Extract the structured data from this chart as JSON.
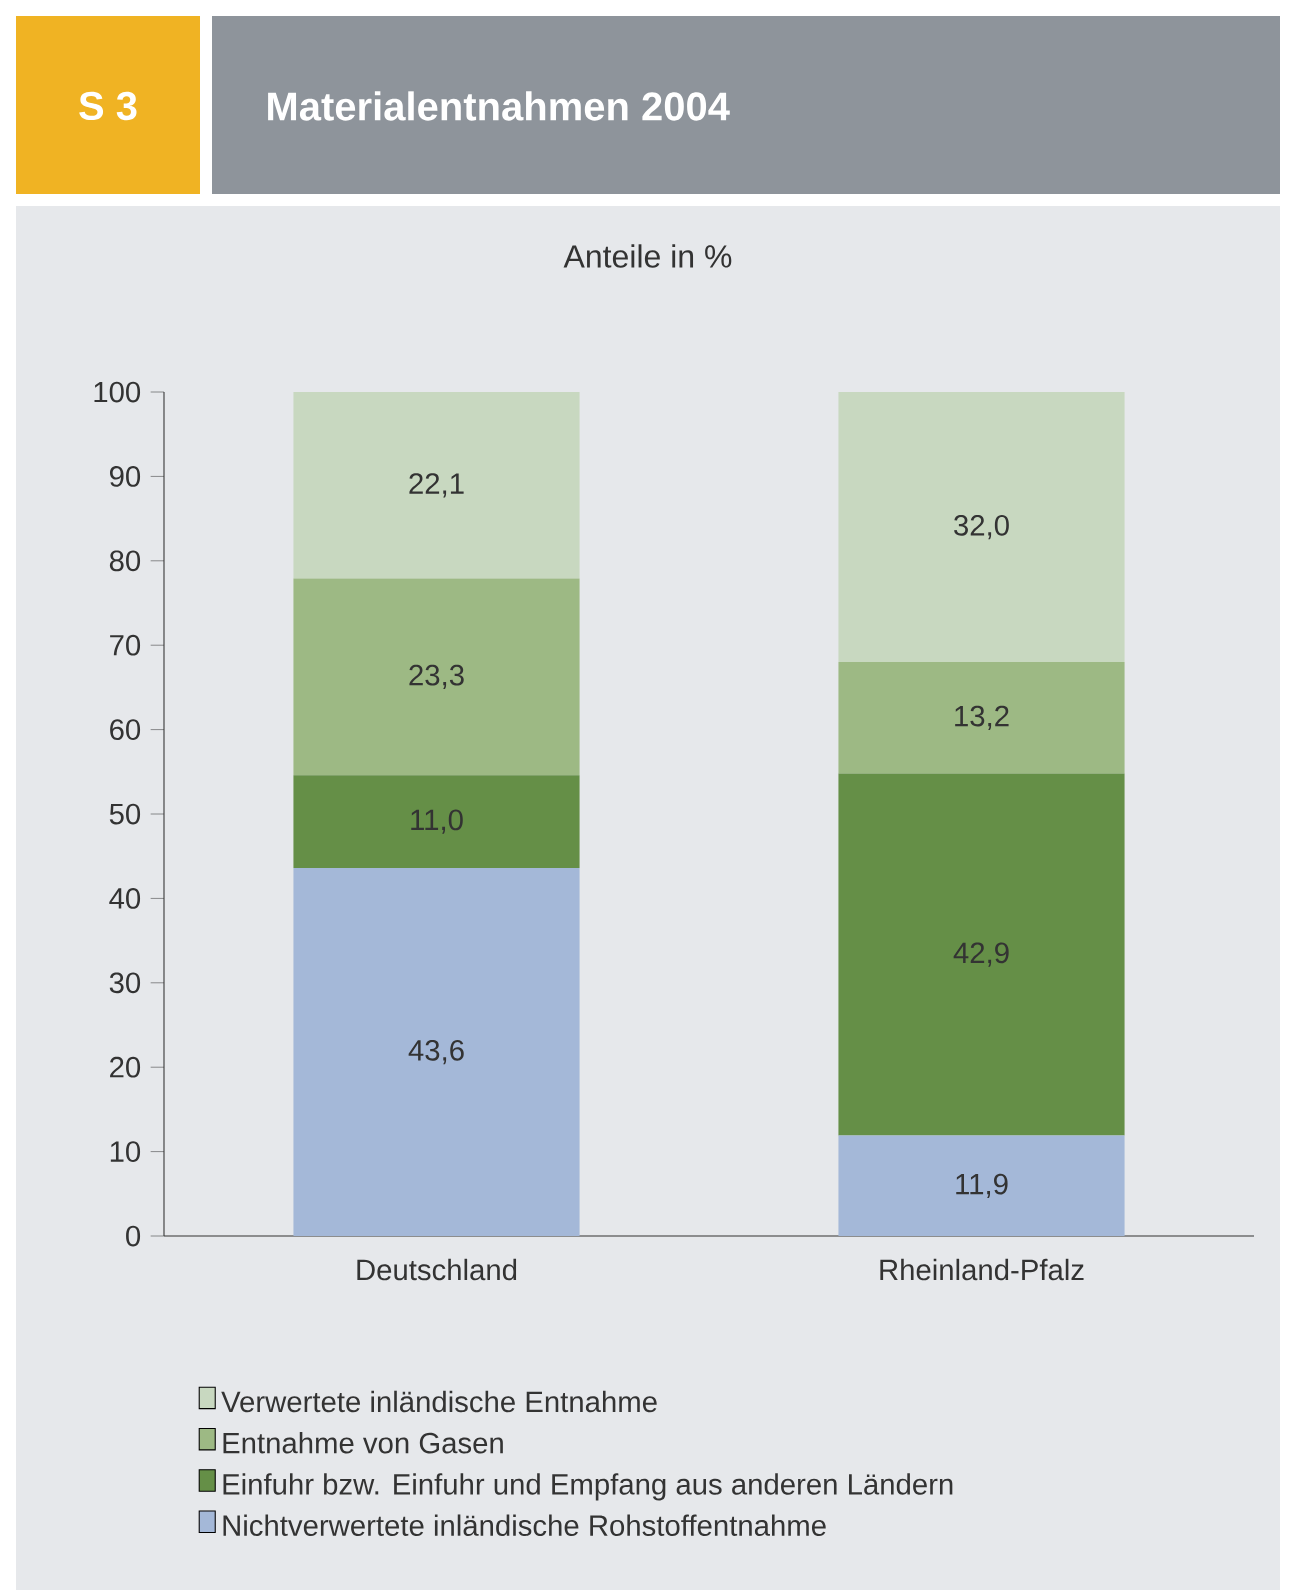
{
  "chart_data": {
    "type": "bar",
    "title": "Materialentnahmen 2004",
    "subtitle": "Anteile in %",
    "annotations": [
      "S 3"
    ],
    "categories": [
      "Deutschland",
      "Rheinland-Pfalz"
    ],
    "stacked": true,
    "legend": "bottom",
    "ylim": [
      0,
      100
    ],
    "yticks": [
      0,
      10,
      20,
      30,
      40,
      50,
      60,
      70,
      80,
      90,
      100
    ],
    "series": [
      {
        "name": "Nichtverwertete inländische Rohstoffentnahme",
        "color": "#a4b8d8",
        "values": [
          43.6,
          11.9
        ],
        "value_labels": [
          "43,6",
          "11,9"
        ]
      },
      {
        "name": "Einfuhr bzw. Einfuhr und Empfang aus anderen Ländern",
        "color": "#658f47",
        "values": [
          11.0,
          42.9
        ],
        "value_labels": [
          "11,0",
          "42,9"
        ]
      },
      {
        "name": "Entnahme von Gasen",
        "color": "#9db984",
        "values": [
          23.3,
          13.2
        ],
        "value_labels": [
          "23,3",
          "13,2"
        ]
      },
      {
        "name": "Verwertete inländische Entnahme",
        "color": "#c8d8c0",
        "values": [
          22.1,
          32.0
        ],
        "value_labels": [
          "22,1",
          "32,0"
        ]
      }
    ]
  }
}
